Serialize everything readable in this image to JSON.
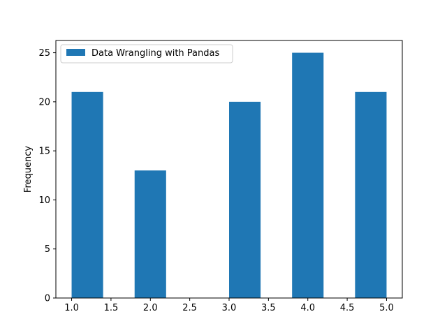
{
  "chart_data": {
    "type": "bar",
    "title": "",
    "xlabel": "",
    "ylabel": "Frequency",
    "bins": [
      {
        "start": 1.0,
        "end": 1.4,
        "count": 21
      },
      {
        "start": 1.4,
        "end": 1.8,
        "count": 0
      },
      {
        "start": 1.8,
        "end": 2.2,
        "count": 13
      },
      {
        "start": 2.2,
        "end": 2.6,
        "count": 0
      },
      {
        "start": 2.6,
        "end": 3.0,
        "count": 0
      },
      {
        "start": 3.0,
        "end": 3.4,
        "count": 20
      },
      {
        "start": 3.4,
        "end": 3.8,
        "count": 0
      },
      {
        "start": 3.8,
        "end": 4.2,
        "count": 25
      },
      {
        "start": 4.2,
        "end": 4.6,
        "count": 0
      },
      {
        "start": 4.6,
        "end": 5.0,
        "count": 21
      }
    ],
    "xlim": [
      0.8,
      5.2
    ],
    "ylim": [
      0,
      26.25
    ],
    "xticks": [
      "1.0",
      "1.5",
      "2.0",
      "2.5",
      "3.0",
      "3.5",
      "4.0",
      "4.5",
      "5.0"
    ],
    "yticks": [
      "0",
      "5",
      "10",
      "15",
      "20",
      "25"
    ],
    "series": [
      {
        "name": "Data Wrangling with Pandas",
        "color": "#1f77b4"
      }
    ],
    "legend": {
      "position": "top-left"
    },
    "grid": false
  }
}
